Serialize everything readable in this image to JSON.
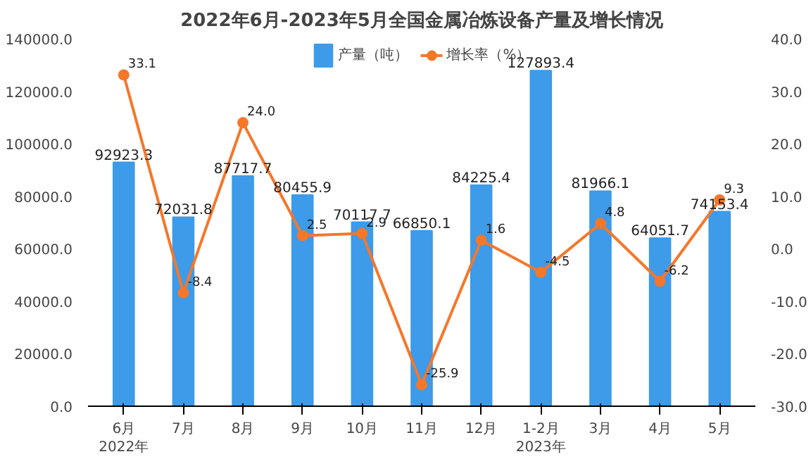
{
  "chart_data": {
    "type": "bar",
    "title": "2022年6月-2023年5月全国金属冶炼设备产量及增长情况",
    "categories": [
      "6月\n2022年",
      "7月",
      "8月",
      "9月",
      "10月",
      "11月",
      "12月",
      "1-2月\n2023年",
      "3月",
      "4月",
      "5月"
    ],
    "series": [
      {
        "name": "产量（吨）",
        "color": "#3d9be9",
        "values": [
          92923.3,
          72031.8,
          87717.7,
          80455.9,
          70117.7,
          66850.1,
          84225.4,
          127893.4,
          81966.1,
          64051.7,
          74153.4
        ],
        "value_labels": [
          "92923.3",
          "72031.8",
          "87717.7",
          "80455.9",
          "70117.7",
          "66850.1",
          "84225.4",
          "127893.4",
          "81966.1",
          "64051.7",
          "74153.4"
        ]
      },
      {
        "name": "增长率（%）",
        "type": "line",
        "axis": "y2",
        "color": "#f5772a",
        "marker": "circle",
        "values": [
          33.1,
          -8.4,
          24.0,
          2.5,
          2.9,
          -25.9,
          1.6,
          -4.5,
          4.8,
          -6.2,
          9.3
        ],
        "value_labels": [
          "33.1",
          "-8.4",
          "24.0",
          "2.5",
          "2.9",
          "-25.9",
          "1.6",
          "-4.5",
          "4.8",
          "-6.2",
          "9.3"
        ]
      }
    ],
    "ylim": [
      0,
      140000
    ],
    "yticks": [
      {
        "value": 0,
        "label": "0.0"
      },
      {
        "value": 20000,
        "label": "20000.0"
      },
      {
        "value": 40000,
        "label": "40000.0"
      },
      {
        "value": 60000,
        "label": "60000.0"
      },
      {
        "value": 80000,
        "label": "80000.0"
      },
      {
        "value": 100000,
        "label": "100000.0"
      },
      {
        "value": 120000,
        "label": "120000.0"
      },
      {
        "value": 140000,
        "label": "140000.0"
      }
    ],
    "y2lim": [
      -30,
      40
    ],
    "y2ticks": [
      {
        "value": -30,
        "label": "-30.0"
      },
      {
        "value": -20,
        "label": "-20.0"
      },
      {
        "value": -10,
        "label": "-10.0"
      },
      {
        "value": 0,
        "label": "0.0"
      },
      {
        "value": 10,
        "label": "10.0"
      },
      {
        "value": 20,
        "label": "20.0"
      },
      {
        "value": 30,
        "label": "30.0"
      },
      {
        "value": 40,
        "label": "40.0"
      }
    ],
    "grid": false,
    "legend": "top",
    "line_style": "solid"
  }
}
